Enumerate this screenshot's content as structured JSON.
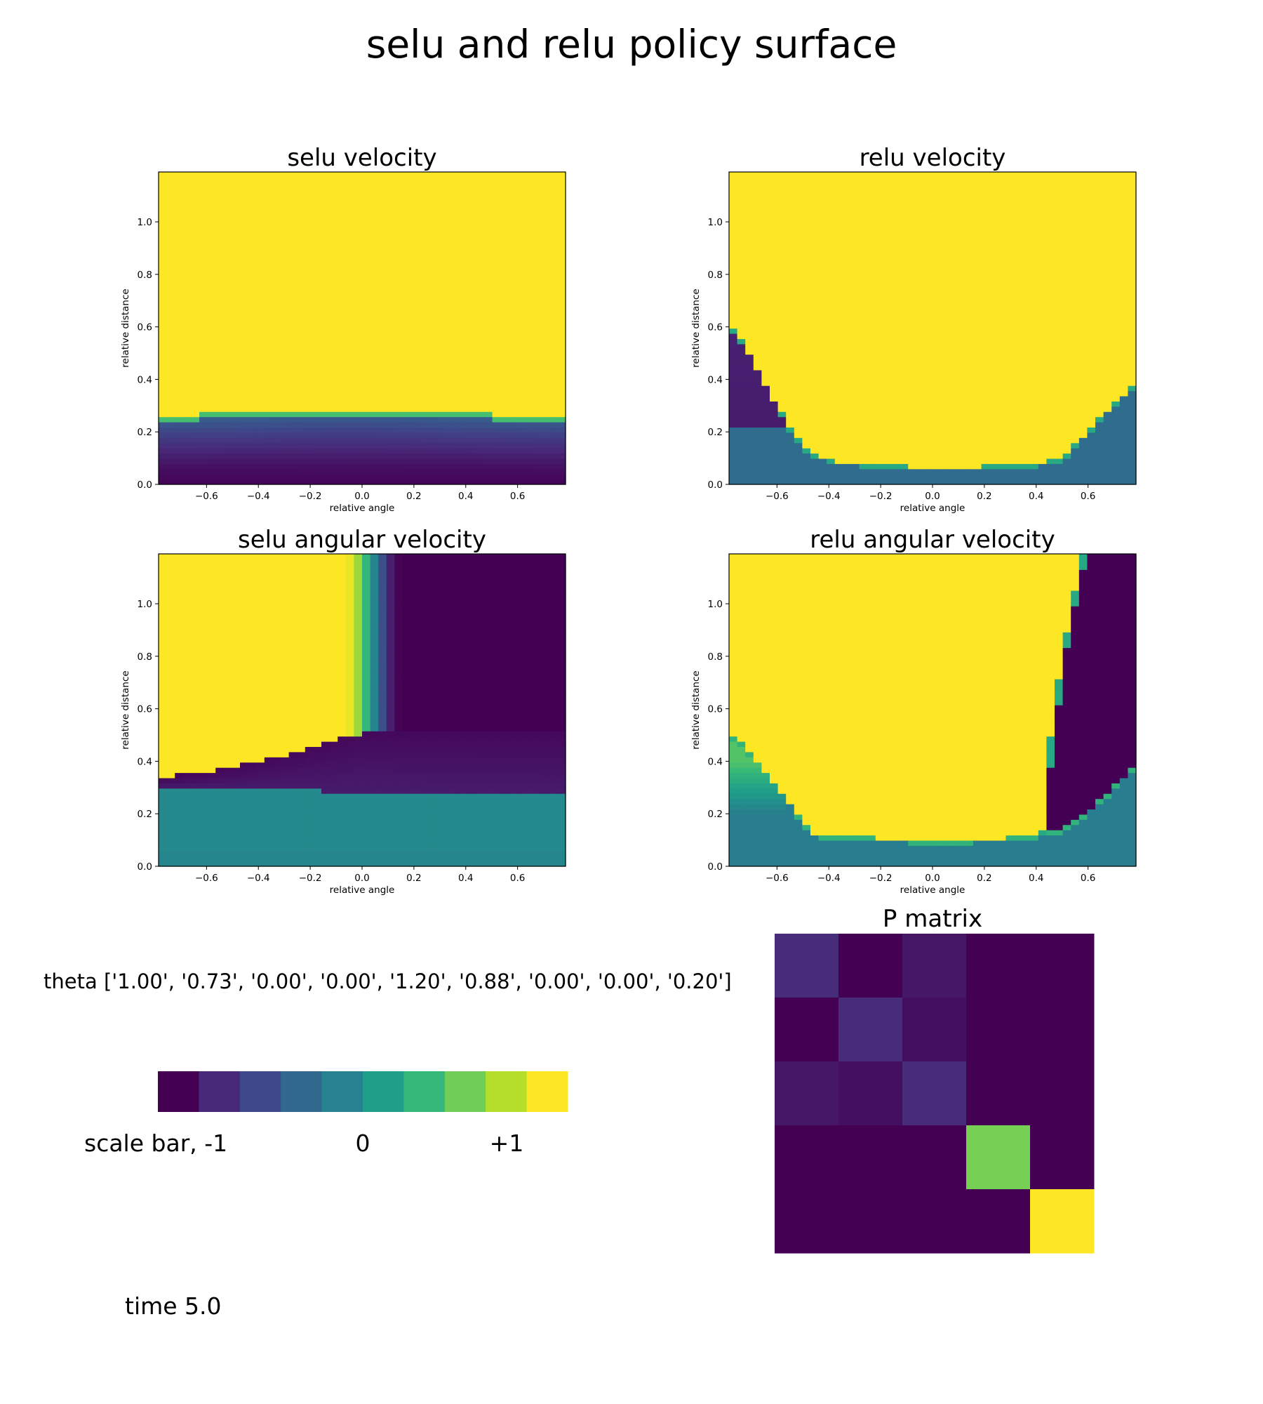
{
  "figure": {
    "title": "selu and relu policy surface",
    "theta_text": "theta ['1.00', '0.73', '0.00', '0.00', '1.20', '0.88', '0.00', '0.00', '0.20']",
    "scale_bar": {
      "label": "scale bar,  -1",
      "zero": "0",
      "plus": "+1"
    },
    "time_text": "time 5.0"
  },
  "colors": {
    "viridis_bar": [
      "#440154",
      "#482878",
      "#3e4989",
      "#31688e",
      "#26828e",
      "#1f9e89",
      "#35b779",
      "#6ece58",
      "#b5de2b",
      "#fde725"
    ]
  },
  "chart_data": [
    {
      "type": "heatmap",
      "id": "selu_velocity",
      "title": "selu velocity",
      "xlabel": "relative angle",
      "ylabel": "relative distance",
      "xlim": [
        -0.785,
        0.785
      ],
      "ylim": [
        0.0,
        1.19
      ],
      "xticks": [
        "−0.6",
        "−0.4",
        "−0.2",
        "0.0",
        "0.2",
        "0.4",
        "0.6"
      ],
      "xtick_values": [
        -0.6,
        -0.4,
        -0.2,
        0.0,
        0.2,
        0.4,
        0.6
      ],
      "yticks": [
        "0.0",
        "0.2",
        "0.4",
        "0.6",
        "0.8",
        "1.0"
      ],
      "ytick_values": [
        0.0,
        0.2,
        0.4,
        0.6,
        0.8,
        1.0
      ],
      "colormap": "viridis",
      "value_range": [
        -1,
        1
      ],
      "boundary": {
        "x": [
          -0.785,
          -0.4,
          -0.2,
          0.0,
          0.2,
          0.4,
          0.785
        ],
        "y": [
          0.265,
          0.272,
          0.28,
          0.282,
          0.277,
          0.27,
          0.262
        ]
      },
      "levels": {
        "above": 1.0,
        "band_top": -0.35,
        "band_bottom": -0.98
      }
    },
    {
      "type": "heatmap",
      "id": "relu_velocity",
      "title": "relu velocity",
      "xlabel": "relative angle",
      "ylabel": "relative distance",
      "xlim": [
        -0.785,
        0.785
      ],
      "ylim": [
        0.0,
        1.19
      ],
      "xticks": [
        "−0.6",
        "−0.4",
        "−0.2",
        "0.0",
        "0.2",
        "0.4",
        "0.6"
      ],
      "xtick_values": [
        -0.6,
        -0.4,
        -0.2,
        0.0,
        0.2,
        0.4,
        0.6
      ],
      "yticks": [
        "0.0",
        "0.2",
        "0.4",
        "0.6",
        "0.8",
        "1.0"
      ],
      "ytick_values": [
        0.0,
        0.2,
        0.4,
        0.6,
        0.8,
        1.0
      ],
      "colormap": "viridis",
      "value_range": [
        -1,
        1
      ],
      "boundary": {
        "x": [
          -0.785,
          -0.7,
          -0.6,
          -0.5,
          -0.4,
          -0.2,
          0.0,
          0.2,
          0.4,
          0.5,
          0.6,
          0.7,
          0.785
        ],
        "y": [
          0.62,
          0.49,
          0.3,
          0.14,
          0.09,
          0.075,
          0.065,
          0.07,
          0.08,
          0.1,
          0.2,
          0.31,
          0.38
        ]
      },
      "levels": {
        "above": 1.0,
        "below": -0.3,
        "dark_region": {
          "x_max": -0.58,
          "y_min": 0.22,
          "value": -0.85
        }
      }
    },
    {
      "type": "heatmap",
      "id": "selu_angular_velocity",
      "title": "selu angular velocity",
      "xlabel": "relative angle",
      "ylabel": "relative distance",
      "xlim": [
        -0.785,
        0.785
      ],
      "ylim": [
        0.0,
        1.19
      ],
      "xticks": [
        "−0.6",
        "−0.4",
        "−0.2",
        "0.0",
        "0.2",
        "0.4",
        "0.6"
      ],
      "xtick_values": [
        -0.6,
        -0.4,
        -0.2,
        0.0,
        0.2,
        0.4,
        0.6
      ],
      "yticks": [
        "0.0",
        "0.2",
        "0.4",
        "0.6",
        "0.8",
        "1.0"
      ],
      "ytick_values": [
        0.0,
        0.2,
        0.4,
        0.6,
        0.8,
        1.0
      ],
      "colormap": "viridis",
      "value_range": [
        -1,
        1
      ],
      "lower_boundary": {
        "x": [
          -0.785,
          -0.4,
          0.0,
          0.4,
          0.785
        ],
        "y": [
          0.3,
          0.292,
          0.285,
          0.275,
          0.27
        ]
      },
      "upper_left_boundary": {
        "x": [
          -0.785,
          -0.6,
          -0.4,
          -0.2,
          0.0
        ],
        "y": [
          0.33,
          0.35,
          0.39,
          0.44,
          0.5
        ]
      },
      "vertical_transition_x": [
        -0.07,
        0.15
      ],
      "levels": {
        "left_top": 1.0,
        "right_top": -1.0,
        "bottom": -0.05
      }
    },
    {
      "type": "heatmap",
      "id": "relu_angular_velocity",
      "title": "relu angular velocity",
      "xlabel": "relative angle",
      "ylabel": "relative distance",
      "xlim": [
        -0.785,
        0.785
      ],
      "ylim": [
        0.0,
        1.19
      ],
      "xticks": [
        "−0.6",
        "−0.4",
        "−0.2",
        "0.0",
        "0.2",
        "0.4",
        "0.6"
      ],
      "xtick_values": [
        -0.6,
        -0.4,
        -0.2,
        0.0,
        0.2,
        0.4,
        0.6
      ],
      "yticks": [
        "0.0",
        "0.2",
        "0.4",
        "0.6",
        "0.8",
        "1.0"
      ],
      "ytick_values": [
        0.0,
        0.2,
        0.4,
        0.6,
        0.8,
        1.0
      ],
      "colormap": "viridis",
      "value_range": [
        -1,
        1
      ],
      "bottom_boundary": {
        "x": [
          -0.785,
          -0.7,
          -0.6,
          -0.5,
          -0.45,
          -0.2,
          0.0,
          0.2,
          0.42,
          0.5,
          0.6,
          0.7,
          0.785
        ],
        "y": [
          0.5,
          0.42,
          0.3,
          0.16,
          0.11,
          0.095,
          0.085,
          0.09,
          0.11,
          0.13,
          0.2,
          0.29,
          0.38
        ]
      },
      "divider": {
        "x": [
          0.42,
          0.45,
          0.5,
          0.55,
          0.58
        ],
        "y": [
          0.1,
          0.45,
          0.8,
          1.05,
          1.19
        ]
      },
      "levels": {
        "left": 1.0,
        "right": -1.0,
        "bottom": -0.15,
        "bottom_left_tint": 0.45
      }
    },
    {
      "type": "heatmap",
      "id": "p_matrix",
      "title": "P matrix",
      "colormap": "viridis",
      "value_range": [
        -1,
        1
      ],
      "matrix": [
        [
          -0.75,
          -1.0,
          -0.88,
          -1.0,
          -1.0
        ],
        [
          -1.0,
          -0.75,
          -0.92,
          -1.0,
          -1.0
        ],
        [
          -0.88,
          -0.92,
          -0.75,
          -1.0,
          -1.0
        ],
        [
          -1.0,
          -1.0,
          -1.0,
          0.58,
          -1.0
        ],
        [
          -1.0,
          -1.0,
          -1.0,
          -1.0,
          1.0
        ]
      ]
    }
  ]
}
